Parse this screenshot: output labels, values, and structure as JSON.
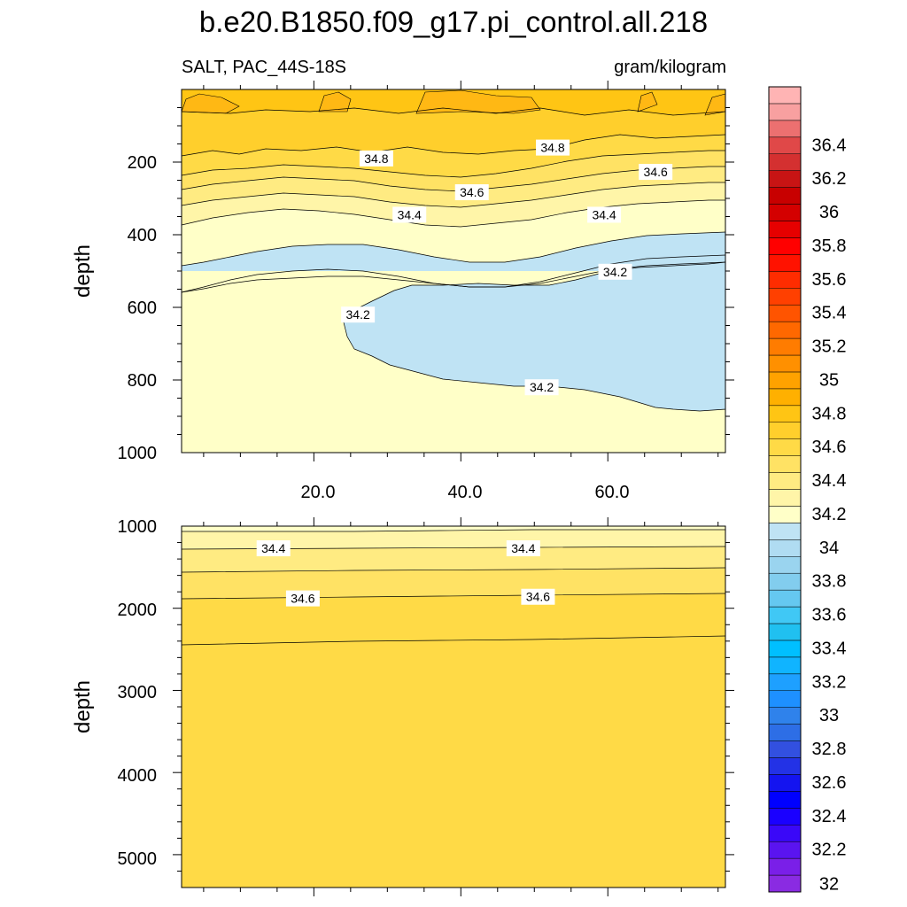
{
  "chart_data": {
    "type": "contour",
    "title": "b.e20.B1850.f09_g17.pi_control.all.218",
    "variable_label": "SALT, PAC_44S-18S",
    "units_label": "gram/kilogram",
    "x": {
      "range": [
        2,
        76
      ],
      "tick_labels": [
        "20.0",
        "40.0",
        "60.0"
      ]
    },
    "upper_panel": {
      "ylabel": "depth",
      "y_range": [
        0,
        1000
      ],
      "y_tick_labels": [
        "200",
        "400",
        "600",
        "800",
        "1000"
      ],
      "contour_labels": [
        {
          "text": "34.8",
          "x": 28.5,
          "y": 190
        },
        {
          "text": "34.8",
          "x": 52.5,
          "y": 160
        },
        {
          "text": "34.6",
          "x": 41.5,
          "y": 283
        },
        {
          "text": "34.6",
          "x": 66.5,
          "y": 227
        },
        {
          "text": "34.4",
          "x": 33,
          "y": 345
        },
        {
          "text": "34.4",
          "x": 59.5,
          "y": 345
        },
        {
          "text": "34.2",
          "x": 61,
          "y": 502
        },
        {
          "text": "34.2",
          "x": 26,
          "y": 620
        },
        {
          "text": "34.2",
          "x": 51,
          "y": 820
        }
      ]
    },
    "lower_panel": {
      "ylabel": "depth",
      "y_range": [
        1000,
        5400
      ],
      "y_tick_labels": [
        "1000",
        "2000",
        "3000",
        "4000",
        "5000"
      ],
      "contour_labels": [
        {
          "text": "34.4",
          "x": 14.5,
          "y": 1270
        },
        {
          "text": "34.4",
          "x": 48.5,
          "y": 1270
        },
        {
          "text": "34.6",
          "x": 18.5,
          "y": 1880
        },
        {
          "text": "34.6",
          "x": 50.5,
          "y": 1860
        }
      ]
    },
    "colorbar": {
      "labels": [
        "32",
        "32.2",
        "32.4",
        "32.6",
        "32.8",
        "33",
        "33.2",
        "33.4",
        "33.6",
        "33.8",
        "34",
        "34.2",
        "34.4",
        "34.6",
        "34.8",
        "35",
        "35.2",
        "35.4",
        "35.6",
        "35.8",
        "36",
        "36.2",
        "36.4"
      ],
      "colors_bottom_to_top": [
        "#8a2be2",
        "#7a1fe8",
        "#5a14f0",
        "#3a08f8",
        "#1a00ff",
        "#0000ff",
        "#1414f0",
        "#2332e6",
        "#3250e0",
        "#2d6ee6",
        "#2f82eb",
        "#1e90ff",
        "#1ea0ff",
        "#10b4ff",
        "#00bfff",
        "#20c0f0",
        "#40c8f5",
        "#65c8f0",
        "#82cdee",
        "#9ad4ef",
        "#b0dcf2",
        "#bfe3f4",
        "#ffffc8",
        "#fff5a8",
        "#ffeb82",
        "#ffe264",
        "#ffda46",
        "#ffcf2c",
        "#ffc514",
        "#ffb000",
        "#ffa200",
        "#ff9000",
        "#ff7c00",
        "#ff6800",
        "#ff5400",
        "#ff4000",
        "#ff2c00",
        "#ff1200",
        "#ff0000",
        "#e60000",
        "#d40000",
        "#c80000",
        "#c81414",
        "#d43030",
        "#e04848",
        "#ec7070",
        "#f8a0a0",
        "#ffb4b4"
      ]
    },
    "fill_colors": {
      "s_34_1": "#bfe3f4",
      "s_34_2": "#ffffc8",
      "s_34_3": "#fff5a8",
      "s_34_4": "#ffeb82",
      "s_34_5": "#ffe264",
      "s_34_6": "#ffda46",
      "s_34_7": "#ffcf2c",
      "s_34_8": "#ffc514",
      "s_34_9": "#ffb814",
      "s_35_0": "#ffaa08"
    }
  }
}
